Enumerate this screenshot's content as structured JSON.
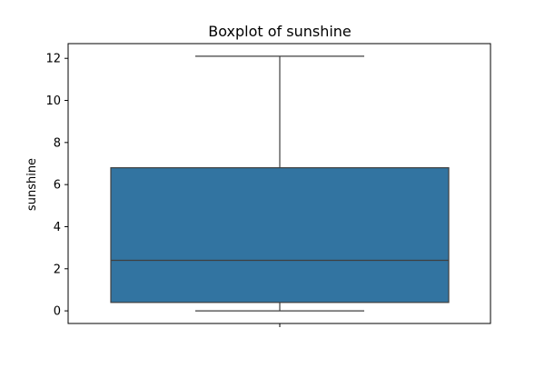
{
  "chart_data": {
    "type": "box",
    "title": "Boxplot of sunshine",
    "xlabel": "",
    "ylabel": "sunshine",
    "ylim": [
      -0.6,
      12.7
    ],
    "yticks": [
      0,
      2,
      4,
      6,
      8,
      10,
      12
    ],
    "ytick_labels": [
      "0",
      "2",
      "4",
      "6",
      "8",
      "10",
      "12"
    ],
    "series": [
      {
        "min": 0.0,
        "q1": 0.4,
        "median": 2.4,
        "q3": 6.8,
        "max": 12.1,
        "color": "#3274a1"
      }
    ],
    "grid": false,
    "legend": "none"
  },
  "colors": {
    "box_fill": "#3274a1",
    "box_edge": "#3f3f3f",
    "axis": "#000000",
    "background": "#ffffff"
  }
}
